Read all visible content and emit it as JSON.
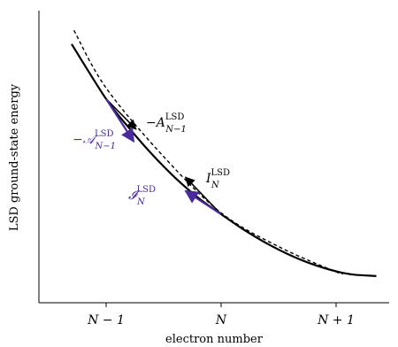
{
  "chart_data": {
    "type": "line",
    "title": "",
    "xlabel": "electron number",
    "ylabel": "LSD ground-state energy",
    "x_ticks": [
      "N − 1",
      "N",
      "N + 1"
    ],
    "x_tick_values": [
      -1,
      0,
      1
    ],
    "xlim": [
      -1.3,
      1.35
    ],
    "ylim": [
      0,
      1
    ],
    "y_ticks_shown": false,
    "grid": false,
    "series": [
      {
        "style": "solid",
        "x": [
          -1.3,
          -1.0,
          -0.8,
          -0.6,
          -0.4,
          -0.2,
          0.0,
          0.2,
          0.4,
          0.6,
          0.8,
          1.0,
          1.15,
          1.35
        ],
        "y": [
          0.92,
          0.72,
          0.614,
          0.518,
          0.433,
          0.36,
          0.3,
          0.243,
          0.193,
          0.151,
          0.117,
          0.092,
          0.08,
          0.075
        ]
      },
      {
        "style": "dashed",
        "x": [
          -1.28,
          -1.0,
          -0.5,
          0.0,
          0.5,
          1.0,
          1.05
        ],
        "y": [
          0.97,
          0.76,
          0.51,
          0.305,
          0.182,
          0.09,
          0.088
        ]
      }
    ],
    "annotations": [
      {
        "text_main": "−A",
        "text_sup": "LSD",
        "text_sub": "N−1",
        "color": "#000000",
        "vector": {
          "x": [
            -1.0,
            -0.74
          ],
          "y": [
            0.72,
            0.61
          ]
        }
      },
      {
        "text_main": "−𝒜",
        "text_sup": "LSD",
        "text_sub": "N−1",
        "color": "#4b2a9e",
        "vector": {
          "x": [
            -1.0,
            -0.76
          ],
          "y": [
            0.72,
            0.565
          ]
        }
      },
      {
        "text_main": "I",
        "text_sup": "LSD",
        "text_sub": "N",
        "color": "#000000",
        "vector": {
          "x": [
            0.0,
            -0.31
          ],
          "y": [
            0.3,
            0.435
          ]
        }
      },
      {
        "text_main": "𝓘",
        "text_sup": "LSD",
        "text_sub": "N",
        "color": "#4b2a9e",
        "vector": {
          "x": [
            0.0,
            -0.31
          ],
          "y": [
            0.3,
            0.385
          ]
        }
      }
    ]
  }
}
